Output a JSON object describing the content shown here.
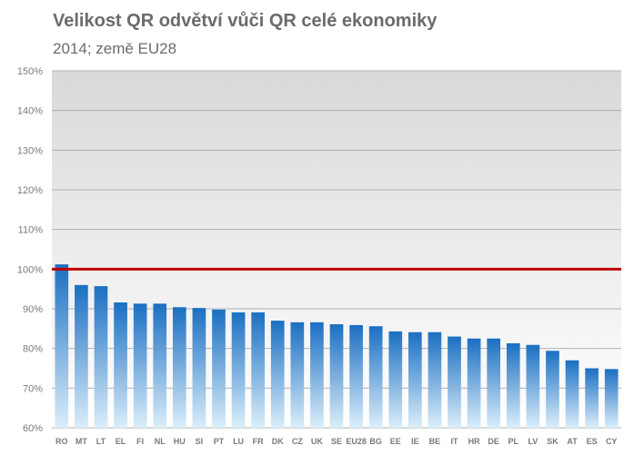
{
  "header": {
    "title": "Velikost QR odvětví vůči QR celé ekonomiky",
    "subtitle": "2014; země EU28"
  },
  "colors": {
    "bar_top": "#1b6fc2",
    "bar_bottom": "#dbeefa",
    "reference_line": "#c00000",
    "plot_bg_top": "#d9d9d9",
    "plot_bg_bottom": "#ffffff",
    "grid": "#b0b0b0"
  },
  "chart_data": {
    "type": "bar",
    "title": "Velikost QR odvětví vůči QR celé ekonomiky",
    "subtitle": "2014; země EU28",
    "categories": [
      "RO",
      "MT",
      "LT",
      "EL",
      "FI",
      "NL",
      "HU",
      "SI",
      "PT",
      "LU",
      "FR",
      "DK",
      "CZ",
      "UK",
      "SE",
      "EU28",
      "BG",
      "EE",
      "IE",
      "BE",
      "IT",
      "HR",
      "DE",
      "PL",
      "LV",
      "SK",
      "AT",
      "ES",
      "CY"
    ],
    "values": [
      101.2,
      96.0,
      95.7,
      91.6,
      91.3,
      91.3,
      90.4,
      90.2,
      89.8,
      89.1,
      89.1,
      87.0,
      86.6,
      86.6,
      86.1,
      85.9,
      85.6,
      84.3,
      84.1,
      84.1,
      83.0,
      82.5,
      82.5,
      81.3,
      80.9,
      79.4,
      77.0,
      75.0,
      74.8
    ],
    "ylim": [
      60,
      150
    ],
    "yticks": [
      60,
      70,
      80,
      90,
      100,
      110,
      120,
      130,
      140,
      150
    ],
    "ytick_labels": [
      "60%",
      "70%",
      "80%",
      "90%",
      "100%",
      "110%",
      "120%",
      "130%",
      "140%",
      "150%"
    ],
    "reference_line": 100,
    "grid": true,
    "legend": false
  }
}
